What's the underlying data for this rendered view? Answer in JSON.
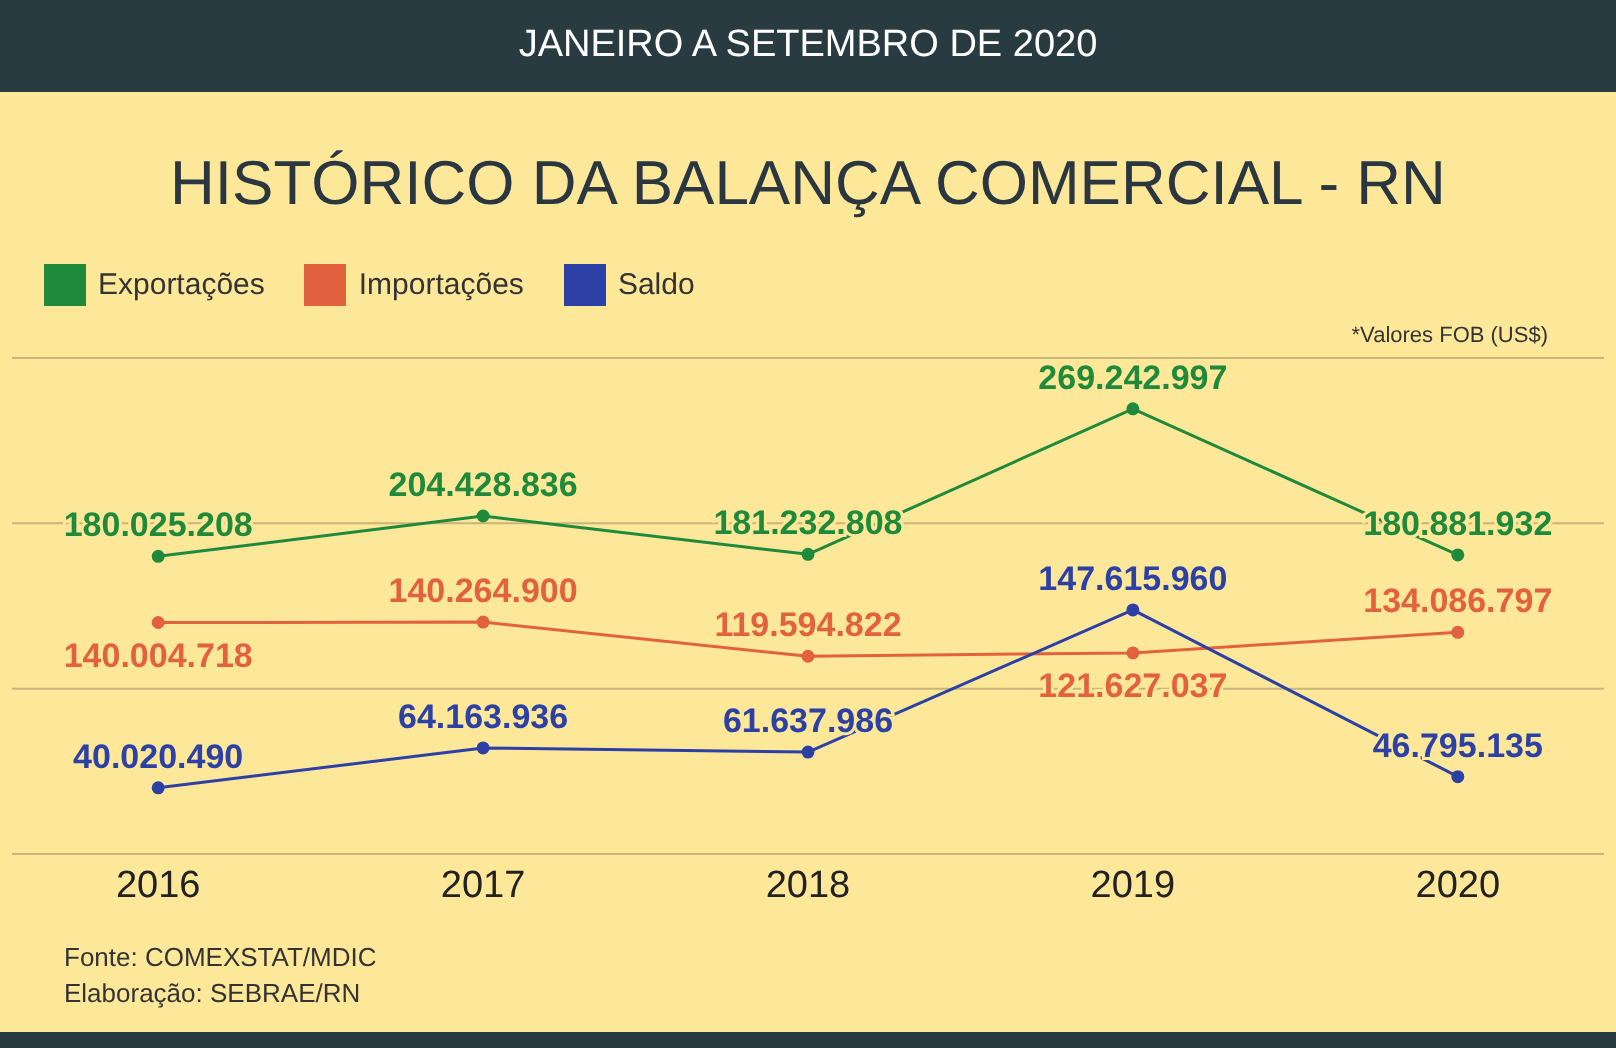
{
  "chart_data": {
    "type": "line",
    "subtitle": "JANEIRO A SETEMBRO DE 2020",
    "title": "HISTÓRICO DA BALANÇA COMERCIAL - RN",
    "categories": [
      "2016",
      "2017",
      "2018",
      "2019",
      "2020"
    ],
    "series": [
      {
        "name": "Exportações",
        "color": "#1f8a3b",
        "values": [
          180025208,
          204428836,
          181232808,
          269242997,
          180881932
        ],
        "value_labels": [
          "180.025.208",
          "204.428.836",
          "181.232.808",
          "269.242.997",
          "180.881.932"
        ]
      },
      {
        "name": "Importações",
        "color": "#e2623f",
        "values": [
          140004718,
          140264900,
          119594822,
          121627037,
          134086797
        ],
        "value_labels": [
          "140.004.718",
          "140.264.900",
          "119.594.822",
          "121.627.037",
          "134.086.797"
        ]
      },
      {
        "name": "Saldo",
        "color": "#2c40a6",
        "values": [
          40020490,
          64163936,
          61637986,
          147615960,
          46795135
        ],
        "value_labels": [
          "40.020.490",
          "64.163.936",
          "61.637.986",
          "147.615.960",
          "46.795.135"
        ]
      }
    ],
    "ylim": [
      0,
      300000000
    ],
    "yticks": [
      {
        "value": 0,
        "label": null
      },
      {
        "value": 100000000,
        "label": null
      },
      {
        "value": 200000000,
        "label": null
      },
      {
        "value": 300000000,
        "label": null
      }
    ],
    "tick_labels": "x",
    "grid": "y",
    "legend": "top left",
    "marker": "circle",
    "annotations": [
      "*Valores FOB (US$)",
      "Fonte: COMEXSTAT/MDIC",
      "Elaboração: SEBRAE/RN"
    ]
  }
}
